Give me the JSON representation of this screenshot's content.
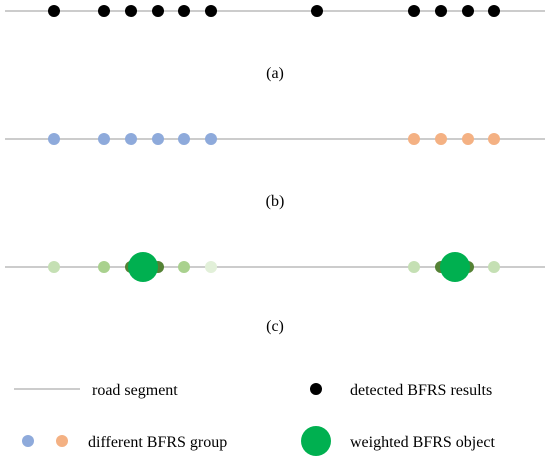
{
  "colors": {
    "road": "#bcbcbc",
    "detected": "#000000",
    "group_blue": "#8eaadb",
    "group_orange": "#f4b183",
    "weighted": "#00b050",
    "light_green": "#c5e0b4",
    "mid_green": "#a9d18e",
    "pale_green": "#e2f0d9",
    "dark_olive": "#548235"
  },
  "panels": [
    {
      "caption": "(a)"
    },
    {
      "caption": "(b)"
    },
    {
      "caption": "(c)"
    }
  ],
  "legend": {
    "road_segment": "road segment",
    "detected_results": "detected BFRS results",
    "different_group": "different BFRS group",
    "weighted_object": "weighted BFRS object"
  }
}
